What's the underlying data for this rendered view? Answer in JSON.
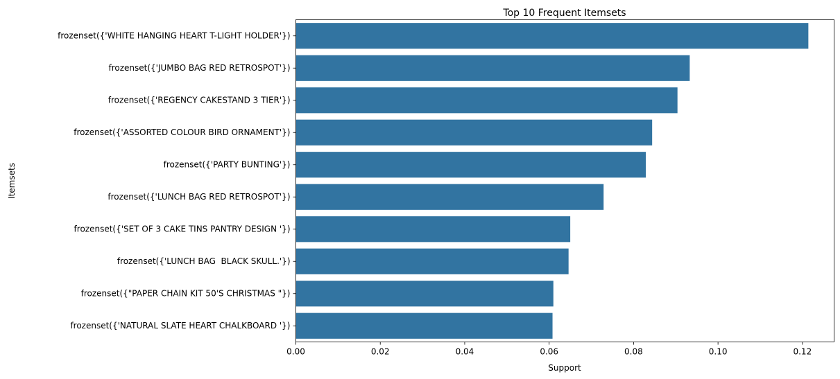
{
  "chart_data": {
    "type": "bar",
    "orientation": "horizontal",
    "title": "Top 10 Frequent Itemsets",
    "xlabel": "Support",
    "ylabel": "Itemsets",
    "xlim": [
      0,
      0.1275
    ],
    "xticks": [
      0.0,
      0.02,
      0.04,
      0.06,
      0.08,
      0.1,
      0.12
    ],
    "xtick_labels": [
      "0.00",
      "0.02",
      "0.04",
      "0.06",
      "0.08",
      "0.10",
      "0.12"
    ],
    "grid": false,
    "bar_color": "#3274a1",
    "categories": [
      "frozenset({'WHITE HANGING HEART T-LIGHT HOLDER'})",
      "frozenset({'JUMBO BAG RED RETROSPOT'})",
      "frozenset({'REGENCY CAKESTAND 3 TIER'})",
      "frozenset({'ASSORTED COLOUR BIRD ORNAMENT'})",
      "frozenset({'PARTY BUNTING'})",
      "frozenset({'LUNCH BAG RED RETROSPOT'})",
      "frozenset({'SET OF 3 CAKE TINS PANTRY DESIGN '})",
      "frozenset({'LUNCH BAG  BLACK SKULL.'})",
      "frozenset({\"PAPER CHAIN KIT 50'S CHRISTMAS \"})",
      "frozenset({'NATURAL SLATE HEART CHALKBOARD '})"
    ],
    "values": [
      0.1214,
      0.0933,
      0.0904,
      0.0844,
      0.0829,
      0.0729,
      0.065,
      0.0646,
      0.061,
      0.0608
    ]
  }
}
